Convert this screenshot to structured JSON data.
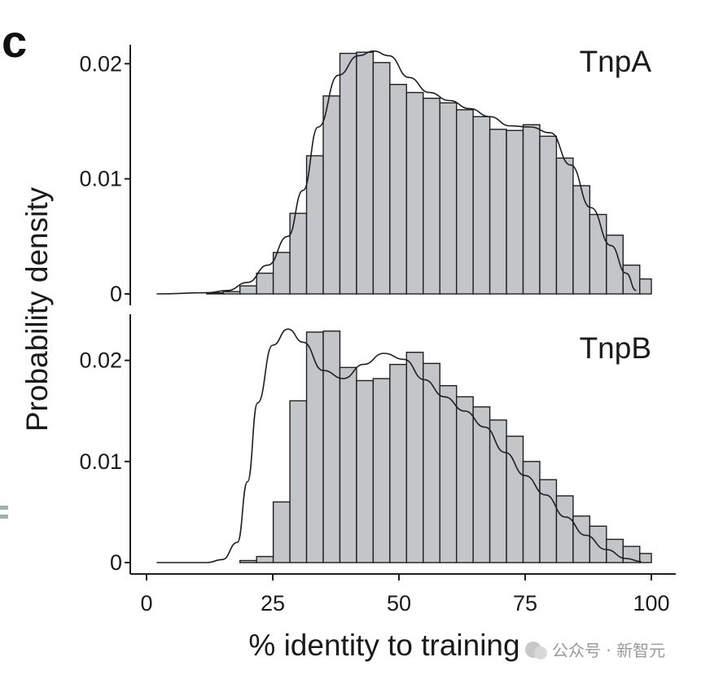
{
  "figure": {
    "panel_letter": "c",
    "xlabel": "% identity to training",
    "ylabel": "Probability density",
    "watermark": "公众号 · 新智元"
  },
  "chart_data": [
    {
      "type": "bar",
      "title": "TnpA",
      "xlabel": "% identity to training",
      "ylabel": "Probability density",
      "xlim": [
        0,
        100
      ],
      "ylim": [
        0,
        0.022
      ],
      "xticks": [
        0,
        25,
        50,
        75,
        100
      ],
      "xtick_labels": [
        "0",
        "25",
        "50",
        "75",
        "100"
      ],
      "yticks": [
        0,
        0.01,
        0.02
      ],
      "ytick_labels": [
        "0",
        "0.01",
        "0.02"
      ],
      "bin_width": 3.3,
      "bin_start": 2,
      "values": [
        0,
        0,
        0,
        0.0001,
        0.0002,
        0.0007,
        0.0018,
        0.0036,
        0.007,
        0.012,
        0.0172,
        0.0209,
        0.021,
        0.0201,
        0.0182,
        0.0175,
        0.017,
        0.0166,
        0.016,
        0.0154,
        0.0143,
        0.0142,
        0.0147,
        0.0137,
        0.0118,
        0.0094,
        0.0069,
        0.0051,
        0.0025,
        0.0013
      ],
      "density_curve": [
        [
          2,
          0
        ],
        [
          12,
          0.0001
        ],
        [
          16,
          0.0003
        ],
        [
          20,
          0.001
        ],
        [
          24,
          0.0025
        ],
        [
          28,
          0.005
        ],
        [
          31,
          0.009
        ],
        [
          34,
          0.0145
        ],
        [
          38,
          0.019
        ],
        [
          42,
          0.0207
        ],
        [
          45,
          0.0211
        ],
        [
          48,
          0.0207
        ],
        [
          52,
          0.0188
        ],
        [
          56,
          0.0175
        ],
        [
          60,
          0.0168
        ],
        [
          64,
          0.0161
        ],
        [
          68,
          0.0154
        ],
        [
          72,
          0.0146
        ],
        [
          76,
          0.0145
        ],
        [
          80,
          0.014
        ],
        [
          84,
          0.0112
        ],
        [
          88,
          0.0075
        ],
        [
          92,
          0.0042
        ],
        [
          95,
          0.0018
        ],
        [
          97,
          0.0003
        ]
      ],
      "grid": false,
      "legend": "none"
    },
    {
      "type": "bar",
      "title": "TnpB",
      "xlabel": "% identity to training",
      "ylabel": "Probability density",
      "xlim": [
        0,
        100
      ],
      "ylim": [
        0,
        0.024
      ],
      "xticks": [
        0,
        25,
        50,
        75,
        100
      ],
      "xtick_labels": [
        "0",
        "25",
        "50",
        "75",
        "100"
      ],
      "yticks": [
        0,
        0.01,
        0.02
      ],
      "ytick_labels": [
        "0",
        "0.01",
        "0.02"
      ],
      "bin_width": 3.3,
      "bin_start": 2,
      "values": [
        0,
        0,
        0,
        0,
        0,
        0.0002,
        0.0006,
        0.006,
        0.016,
        0.0228,
        0.0229,
        0.0193,
        0.018,
        0.0182,
        0.0196,
        0.0208,
        0.0197,
        0.0175,
        0.0164,
        0.0154,
        0.0141,
        0.0125,
        0.01,
        0.0082,
        0.0066,
        0.0046,
        0.0036,
        0.0023,
        0.0016,
        0.0009,
        0.0005
      ],
      "density_curve": [
        [
          2,
          0
        ],
        [
          12,
          0
        ],
        [
          15,
          0.0003
        ],
        [
          18,
          0.002
        ],
        [
          20,
          0.008
        ],
        [
          22,
          0.0158
        ],
        [
          25,
          0.0215
        ],
        [
          28,
          0.0231
        ],
        [
          31,
          0.0218
        ],
        [
          35,
          0.019
        ],
        [
          39,
          0.0182
        ],
        [
          43,
          0.0196
        ],
        [
          47,
          0.0207
        ],
        [
          51,
          0.0201
        ],
        [
          55,
          0.0181
        ],
        [
          59,
          0.0164
        ],
        [
          63,
          0.015
        ],
        [
          67,
          0.0134
        ],
        [
          71,
          0.0109
        ],
        [
          75,
          0.0086
        ],
        [
          79,
          0.0067
        ],
        [
          83,
          0.0045
        ],
        [
          87,
          0.0027
        ],
        [
          91,
          0.0013
        ],
        [
          95,
          0.0004
        ],
        [
          98,
          0.0001
        ]
      ],
      "grid": false,
      "legend": "none"
    }
  ]
}
